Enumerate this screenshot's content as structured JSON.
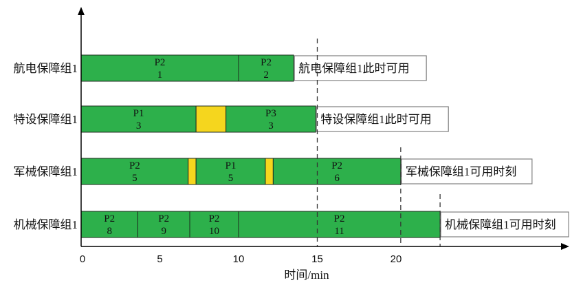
{
  "chart_data": {
    "type": "gantt",
    "xlabel": "时间/min",
    "ticks": [
      "0",
      "5",
      "10",
      "15",
      "20"
    ],
    "xlim": [
      0,
      31
    ],
    "grid": false,
    "rows": [
      {
        "label": "航电保障组1",
        "tasks": [
          {
            "start": 0,
            "end": 10.0,
            "kind": "work",
            "type": "P2",
            "num": "1"
          },
          {
            "start": 10.0,
            "end": 13.5,
            "kind": "work",
            "type": "P2",
            "num": "2"
          }
        ],
        "annotation": "航电保障组1此时可用"
      },
      {
        "label": "特设保障组1",
        "tasks": [
          {
            "start": 0,
            "end": 7.3,
            "kind": "work",
            "type": "P1",
            "num": "3"
          },
          {
            "start": 7.3,
            "end": 9.2,
            "kind": "wait"
          },
          {
            "start": 9.2,
            "end": 14.9,
            "kind": "work",
            "type": "P3",
            "num": "3"
          }
        ],
        "annotation": "特设保障组1此时可用"
      },
      {
        "label": "军械保障组1",
        "tasks": [
          {
            "start": 0,
            "end": 6.8,
            "kind": "work",
            "type": "P2",
            "num": "5"
          },
          {
            "start": 6.8,
            "end": 7.3,
            "kind": "wait"
          },
          {
            "start": 7.3,
            "end": 11.7,
            "kind": "work",
            "type": "P1",
            "num": "5"
          },
          {
            "start": 11.7,
            "end": 12.2,
            "kind": "wait"
          },
          {
            "start": 12.2,
            "end": 20.3,
            "kind": "work",
            "type": "P2",
            "num": "6"
          }
        ],
        "annotation": "军械保障组1可用时刻"
      },
      {
        "label": "机械保障组1",
        "tasks": [
          {
            "start": 0,
            "end": 3.6,
            "kind": "work",
            "type": "P2",
            "num": "8"
          },
          {
            "start": 3.6,
            "end": 6.9,
            "kind": "work",
            "type": "P2",
            "num": "9"
          },
          {
            "start": 6.9,
            "end": 10.0,
            "kind": "work",
            "type": "P2",
            "num": "10"
          },
          {
            "start": 10.0,
            "end": 22.8,
            "kind": "work",
            "type": "P2",
            "num": "11"
          }
        ],
        "annotation": "机械保障组1可用时刻"
      }
    ],
    "markers": [
      15,
      20.3,
      22.8
    ],
    "colors": {
      "work": "#2DB04B",
      "wait": "#F5D61E",
      "edge": "#1d2b1d",
      "axis": "#000000",
      "anno_border": "#808080"
    }
  }
}
